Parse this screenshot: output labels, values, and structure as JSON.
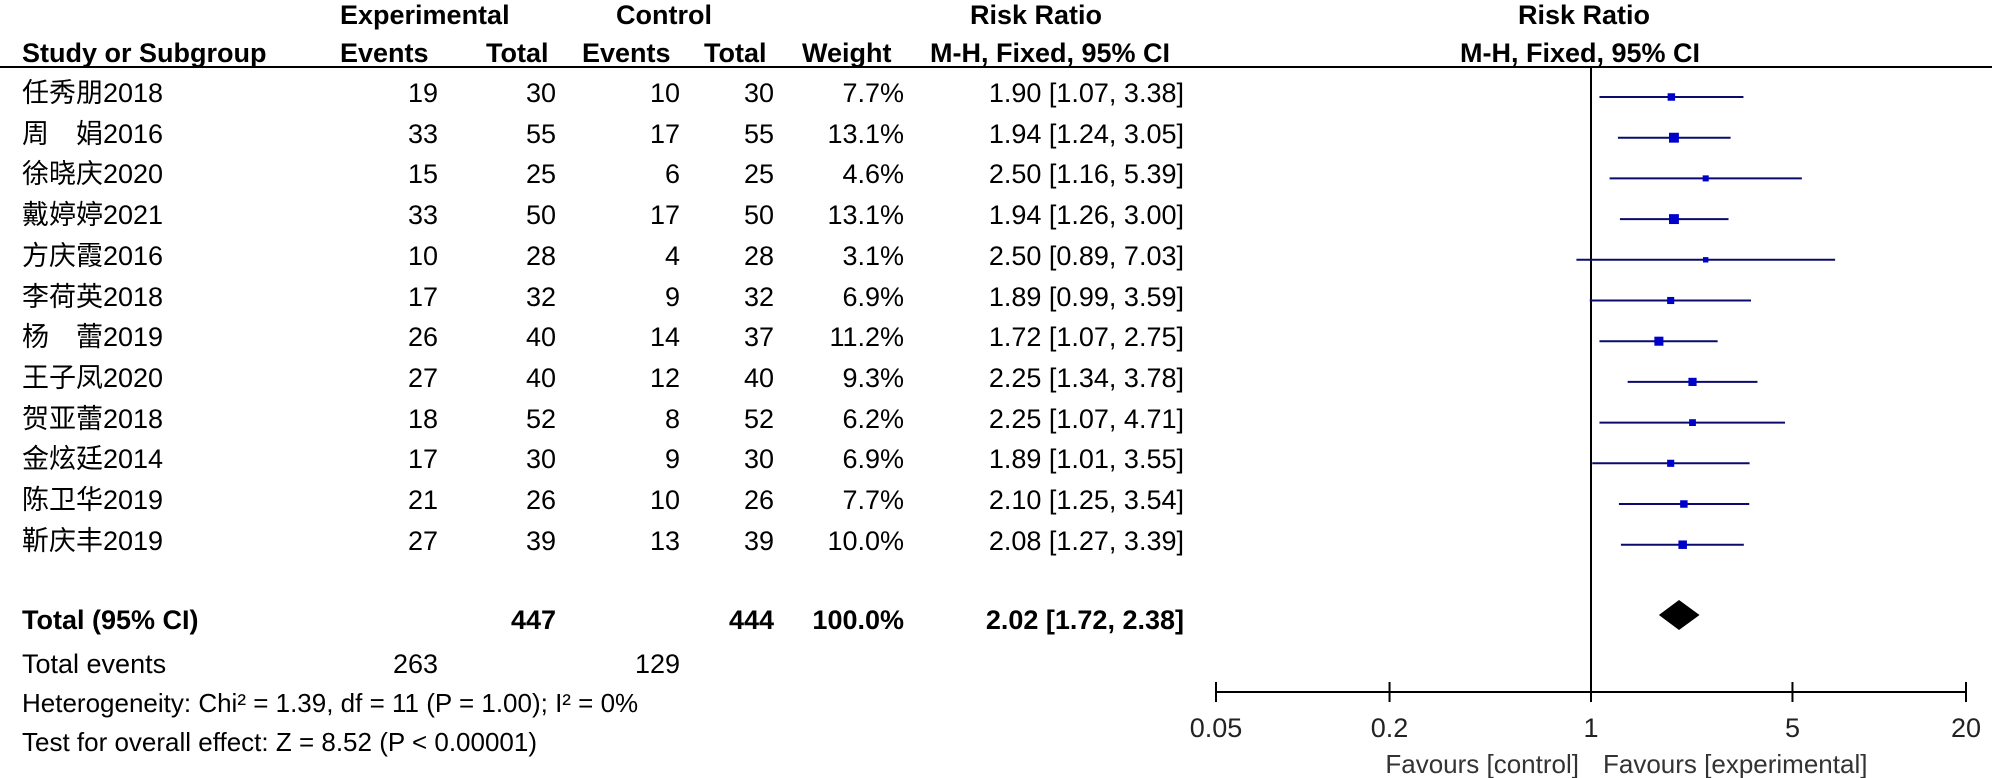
{
  "headers": {
    "experimental": "Experimental",
    "control": "Control",
    "risk_ratio": "Risk Ratio",
    "study": "Study or Subgroup",
    "events": "Events",
    "total": "Total",
    "weight": "Weight",
    "method": "M-H, Fixed, 95% CI",
    "plot_title": "Risk Ratio",
    "plot_method": "M-H, Fixed, 95% CI"
  },
  "studies": [
    {
      "name": "任秀朋2018",
      "e_events": "19",
      "e_total": "30",
      "c_events": "10",
      "c_total": "30",
      "weight": "7.7%",
      "ci": "1.90 [1.07, 3.38]"
    },
    {
      "name": "周　娟2016",
      "e_events": "33",
      "e_total": "55",
      "c_events": "17",
      "c_total": "55",
      "weight": "13.1%",
      "ci": "1.94 [1.24, 3.05]"
    },
    {
      "name": "徐晓庆2020",
      "e_events": "15",
      "e_total": "25",
      "c_events": "6",
      "c_total": "25",
      "weight": "4.6%",
      "ci": "2.50 [1.16, 5.39]"
    },
    {
      "name": "戴婷婷2021",
      "e_events": "33",
      "e_total": "50",
      "c_events": "17",
      "c_total": "50",
      "weight": "13.1%",
      "ci": "1.94 [1.26, 3.00]"
    },
    {
      "name": "方庆霞2016",
      "e_events": "10",
      "e_total": "28",
      "c_events": "4",
      "c_total": "28",
      "weight": "3.1%",
      "ci": "2.50 [0.89, 7.03]"
    },
    {
      "name": "李荷英2018",
      "e_events": "17",
      "e_total": "32",
      "c_events": "9",
      "c_total": "32",
      "weight": "6.9%",
      "ci": "1.89 [0.99, 3.59]"
    },
    {
      "name": "杨　蕾2019",
      "e_events": "26",
      "e_total": "40",
      "c_events": "14",
      "c_total": "37",
      "weight": "11.2%",
      "ci": "1.72 [1.07, 2.75]"
    },
    {
      "name": "王子凤2020",
      "e_events": "27",
      "e_total": "40",
      "c_events": "12",
      "c_total": "40",
      "weight": "9.3%",
      "ci": "2.25 [1.34, 3.78]"
    },
    {
      "name": "贺亚蕾2018",
      "e_events": "18",
      "e_total": "52",
      "c_events": "8",
      "c_total": "52",
      "weight": "6.2%",
      "ci": "2.25 [1.07, 4.71]"
    },
    {
      "name": "金炫廷2014",
      "e_events": "17",
      "e_total": "30",
      "c_events": "9",
      "c_total": "30",
      "weight": "6.9%",
      "ci": "1.89 [1.01, 3.55]"
    },
    {
      "name": "陈卫华2019",
      "e_events": "21",
      "e_total": "26",
      "c_events": "10",
      "c_total": "26",
      "weight": "7.7%",
      "ci": "2.10 [1.25, 3.54]"
    },
    {
      "name": "靳庆丰2019",
      "e_events": "27",
      "e_total": "39",
      "c_events": "13",
      "c_total": "39",
      "weight": "10.0%",
      "ci": "2.08 [1.27, 3.39]"
    }
  ],
  "total": {
    "label": "Total (95% CI)",
    "e_total": "447",
    "c_total": "444",
    "weight": "100.0%",
    "ci": "2.02 [1.72, 2.38]"
  },
  "total_events": {
    "label": "Total events",
    "e": "263",
    "c": "129"
  },
  "heterogeneity": "Heterogeneity: Chi² = 1.39, df = 11 (P = 1.00); I² = 0%",
  "overall_effect": "Test for overall effect: Z = 8.52 (P < 0.00001)",
  "axis": {
    "ticks": [
      {
        "v": 0.05,
        "label": "0.05"
      },
      {
        "v": 0.2,
        "label": "0.2"
      },
      {
        "v": 1,
        "label": "1"
      },
      {
        "v": 5,
        "label": "5"
      },
      {
        "v": 20,
        "label": "20"
      }
    ],
    "favours_left": "Favours [control]",
    "favours_right": "Favours [experimental]"
  },
  "chart_data": {
    "type": "forest",
    "scale": "log",
    "xlim": [
      0.05,
      20
    ],
    "title": "Risk Ratio",
    "subtitle": "M-H, Fixed, 95% CI",
    "points": [
      {
        "rr": 1.9,
        "lo": 1.07,
        "hi": 3.38,
        "weight": 7.7
      },
      {
        "rr": 1.94,
        "lo": 1.24,
        "hi": 3.05,
        "weight": 13.1
      },
      {
        "rr": 2.5,
        "lo": 1.16,
        "hi": 5.39,
        "weight": 4.6
      },
      {
        "rr": 1.94,
        "lo": 1.26,
        "hi": 3.0,
        "weight": 13.1
      },
      {
        "rr": 2.5,
        "lo": 0.89,
        "hi": 7.03,
        "weight": 3.1
      },
      {
        "rr": 1.89,
        "lo": 0.99,
        "hi": 3.59,
        "weight": 6.9
      },
      {
        "rr": 1.72,
        "lo": 1.07,
        "hi": 2.75,
        "weight": 11.2
      },
      {
        "rr": 2.25,
        "lo": 1.34,
        "hi": 3.78,
        "weight": 9.3
      },
      {
        "rr": 2.25,
        "lo": 1.07,
        "hi": 4.71,
        "weight": 6.2
      },
      {
        "rr": 1.89,
        "lo": 1.01,
        "hi": 3.55,
        "weight": 6.9
      },
      {
        "rr": 2.1,
        "lo": 1.25,
        "hi": 3.54,
        "weight": 7.7
      },
      {
        "rr": 2.08,
        "lo": 1.27,
        "hi": 3.39,
        "weight": 10.0
      }
    ],
    "pooled": {
      "rr": 2.02,
      "lo": 1.72,
      "hi": 2.38
    },
    "colors": {
      "marker": "#0000cc",
      "diamond": "#000000",
      "line": "#000000"
    }
  }
}
